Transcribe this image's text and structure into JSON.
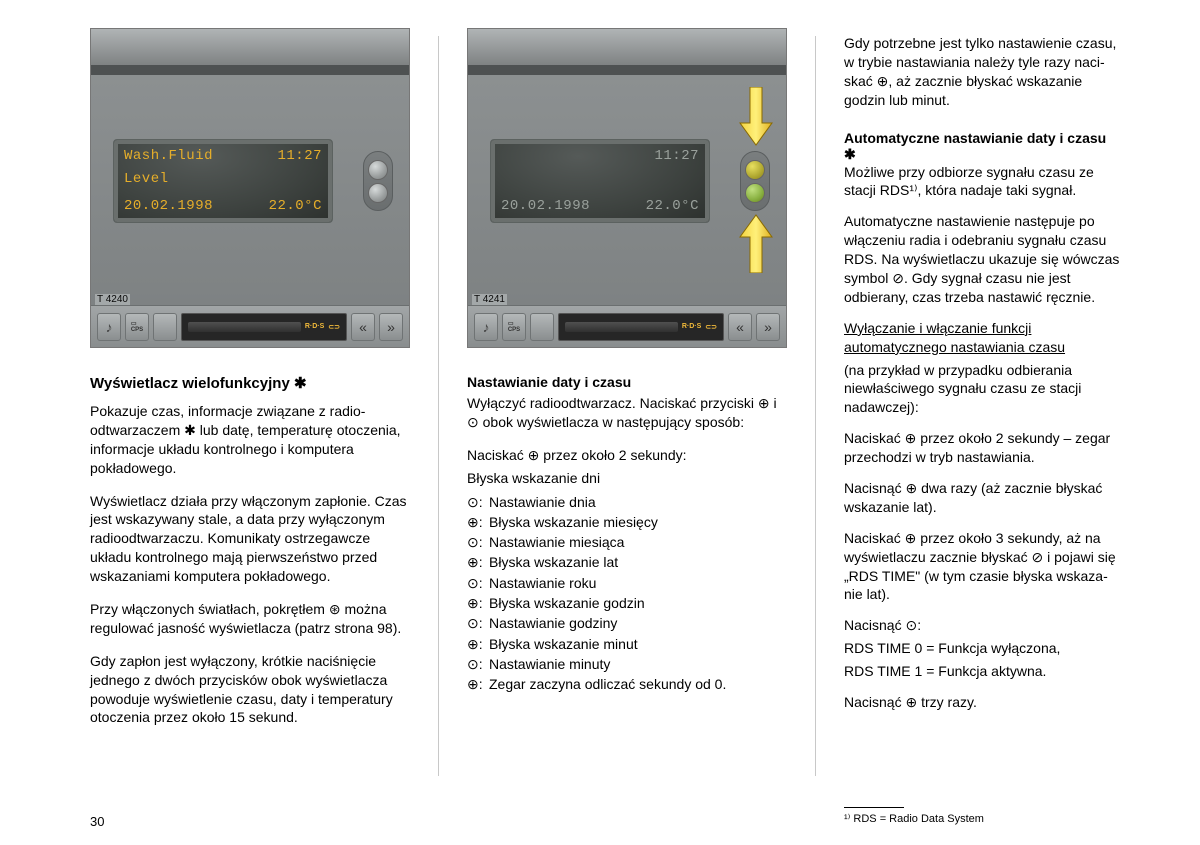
{
  "page_number": "30",
  "footnote": "¹⁾ RDS = Radio Data System",
  "left_dash": {
    "line1_left": "Wash.Fluid",
    "line1_right": "11:27",
    "line2": "Level",
    "line3_left": "20.02.1998",
    "line3_right": "22.0°C",
    "ref": "T 4240"
  },
  "right_dash": {
    "line1_right": "11:27",
    "line3_left": "20.02.1998",
    "line3_right": "22.0°C",
    "ref": "T 4241"
  },
  "col1": {
    "title": "Wyświetlacz wielofunkcyjny ✱",
    "p1": "Pokazuje czas, informacje związane z radio­odtwarzaczem ✱ lub datę, temperaturę oto­czenia, informacje układu kontrolnego i komputera pokładowego.",
    "p2": "Wyświetlacz działa przy włączonym zapło­nie. Czas jest wskazywany stale, a data przy wyłączonym radioodtwarzaczu. Komu­nikaty ostrzegawcze układu kontrolnego mają pierwszeństwo przed wskazaniami komputera pokładowego.",
    "p3": "Przy włączonych światłach, pokrętłem ⊛ można regulować jasność wyświetlacza (patrz strona 98).",
    "p4": "Gdy zapłon jest wyłączony, krótkie naciśnię­cie jednego z dwóch przycisków obok wy­świetlacza powoduje wyświetlenie czasu, daty i temperatury otoczenia przez około 15 sekund."
  },
  "col2": {
    "title": "Nastawianie daty i czasu",
    "intro": "Wyłączyć radioodtwarzacz. Naciskać przy­ciski ⊕ i ⊙ obok wyświetlacza w następują­cy sposób:",
    "lead": "Naciskać ⊕ przez około 2 sekundy:",
    "lead2": "Błyska wskazanie dni",
    "steps": [
      {
        "sym": "⊙:",
        "txt": "Nastawianie dnia"
      },
      {
        "sym": "⊕:",
        "txt": "Błyska wskazanie miesięcy"
      },
      {
        "sym": "⊙:",
        "txt": "Nastawianie miesiąca"
      },
      {
        "sym": "⊕:",
        "txt": "Błyska wskazanie lat"
      },
      {
        "sym": "⊙:",
        "txt": "Nastawianie roku"
      },
      {
        "sym": "⊕:",
        "txt": "Błyska wskazanie godzin"
      },
      {
        "sym": "⊙:",
        "txt": "Nastawianie godziny"
      },
      {
        "sym": "⊕:",
        "txt": "Błyska wskazanie minut"
      },
      {
        "sym": "⊙:",
        "txt": "Nastawianie minuty"
      },
      {
        "sym": "⊕:",
        "txt": "Zegar zaczyna odliczać sekundy od 0."
      }
    ]
  },
  "col3": {
    "p1": "Gdy potrzebne jest tylko nastawienie czasu, w trybie nastawiania należy tyle razy naci­skać ⊕, aż zacznie błyskać wskazanie godzin lub minut.",
    "title": "Automatyczne nastawianie daty i czasu ✱",
    "p2": "Możliwe przy odbiorze sygnału czasu ze stacji RDS¹⁾, która nadaje taki sygnał.",
    "p3": "Automatyczne nastawienie następuje po włączeniu radia i odebraniu sygnału czasu RDS. Na wyświetlaczu ukazuje się wówczas symbol ⊘. Gdy sygnał czasu nie jest odbierany, czas trzeba nastawić ręcznie.",
    "under1": "Wyłączanie i włączanie funkcji automatycznego nastawiania czasu",
    "p4": "(na przykład w przypadku odbierania niewłaściwego sygnału czasu ze stacji nadawczej):",
    "p5": "Naciskać ⊕ przez około 2 sekundy – zegar przechodzi w tryb nastawiania.",
    "p6": "Nacisnąć ⊕ dwa razy (aż zacznie błyskać wskazanie lat).",
    "p7": "Naciskać ⊕ przez około 3 sekundy, aż na wyświetlaczu zacznie błyskać ⊘ i pojawi się „RDS TIME\" (w tym czasie błyska wskaza­nie lat).",
    "p8": "Nacisnąć ⊙:",
    "opt1": "RDS TIME 0 = Funkcja wyłączona,",
    "opt2": "RDS TIME 1 = Funkcja aktywna.",
    "p9": "Nacisnąć ⊕ trzy razy."
  }
}
